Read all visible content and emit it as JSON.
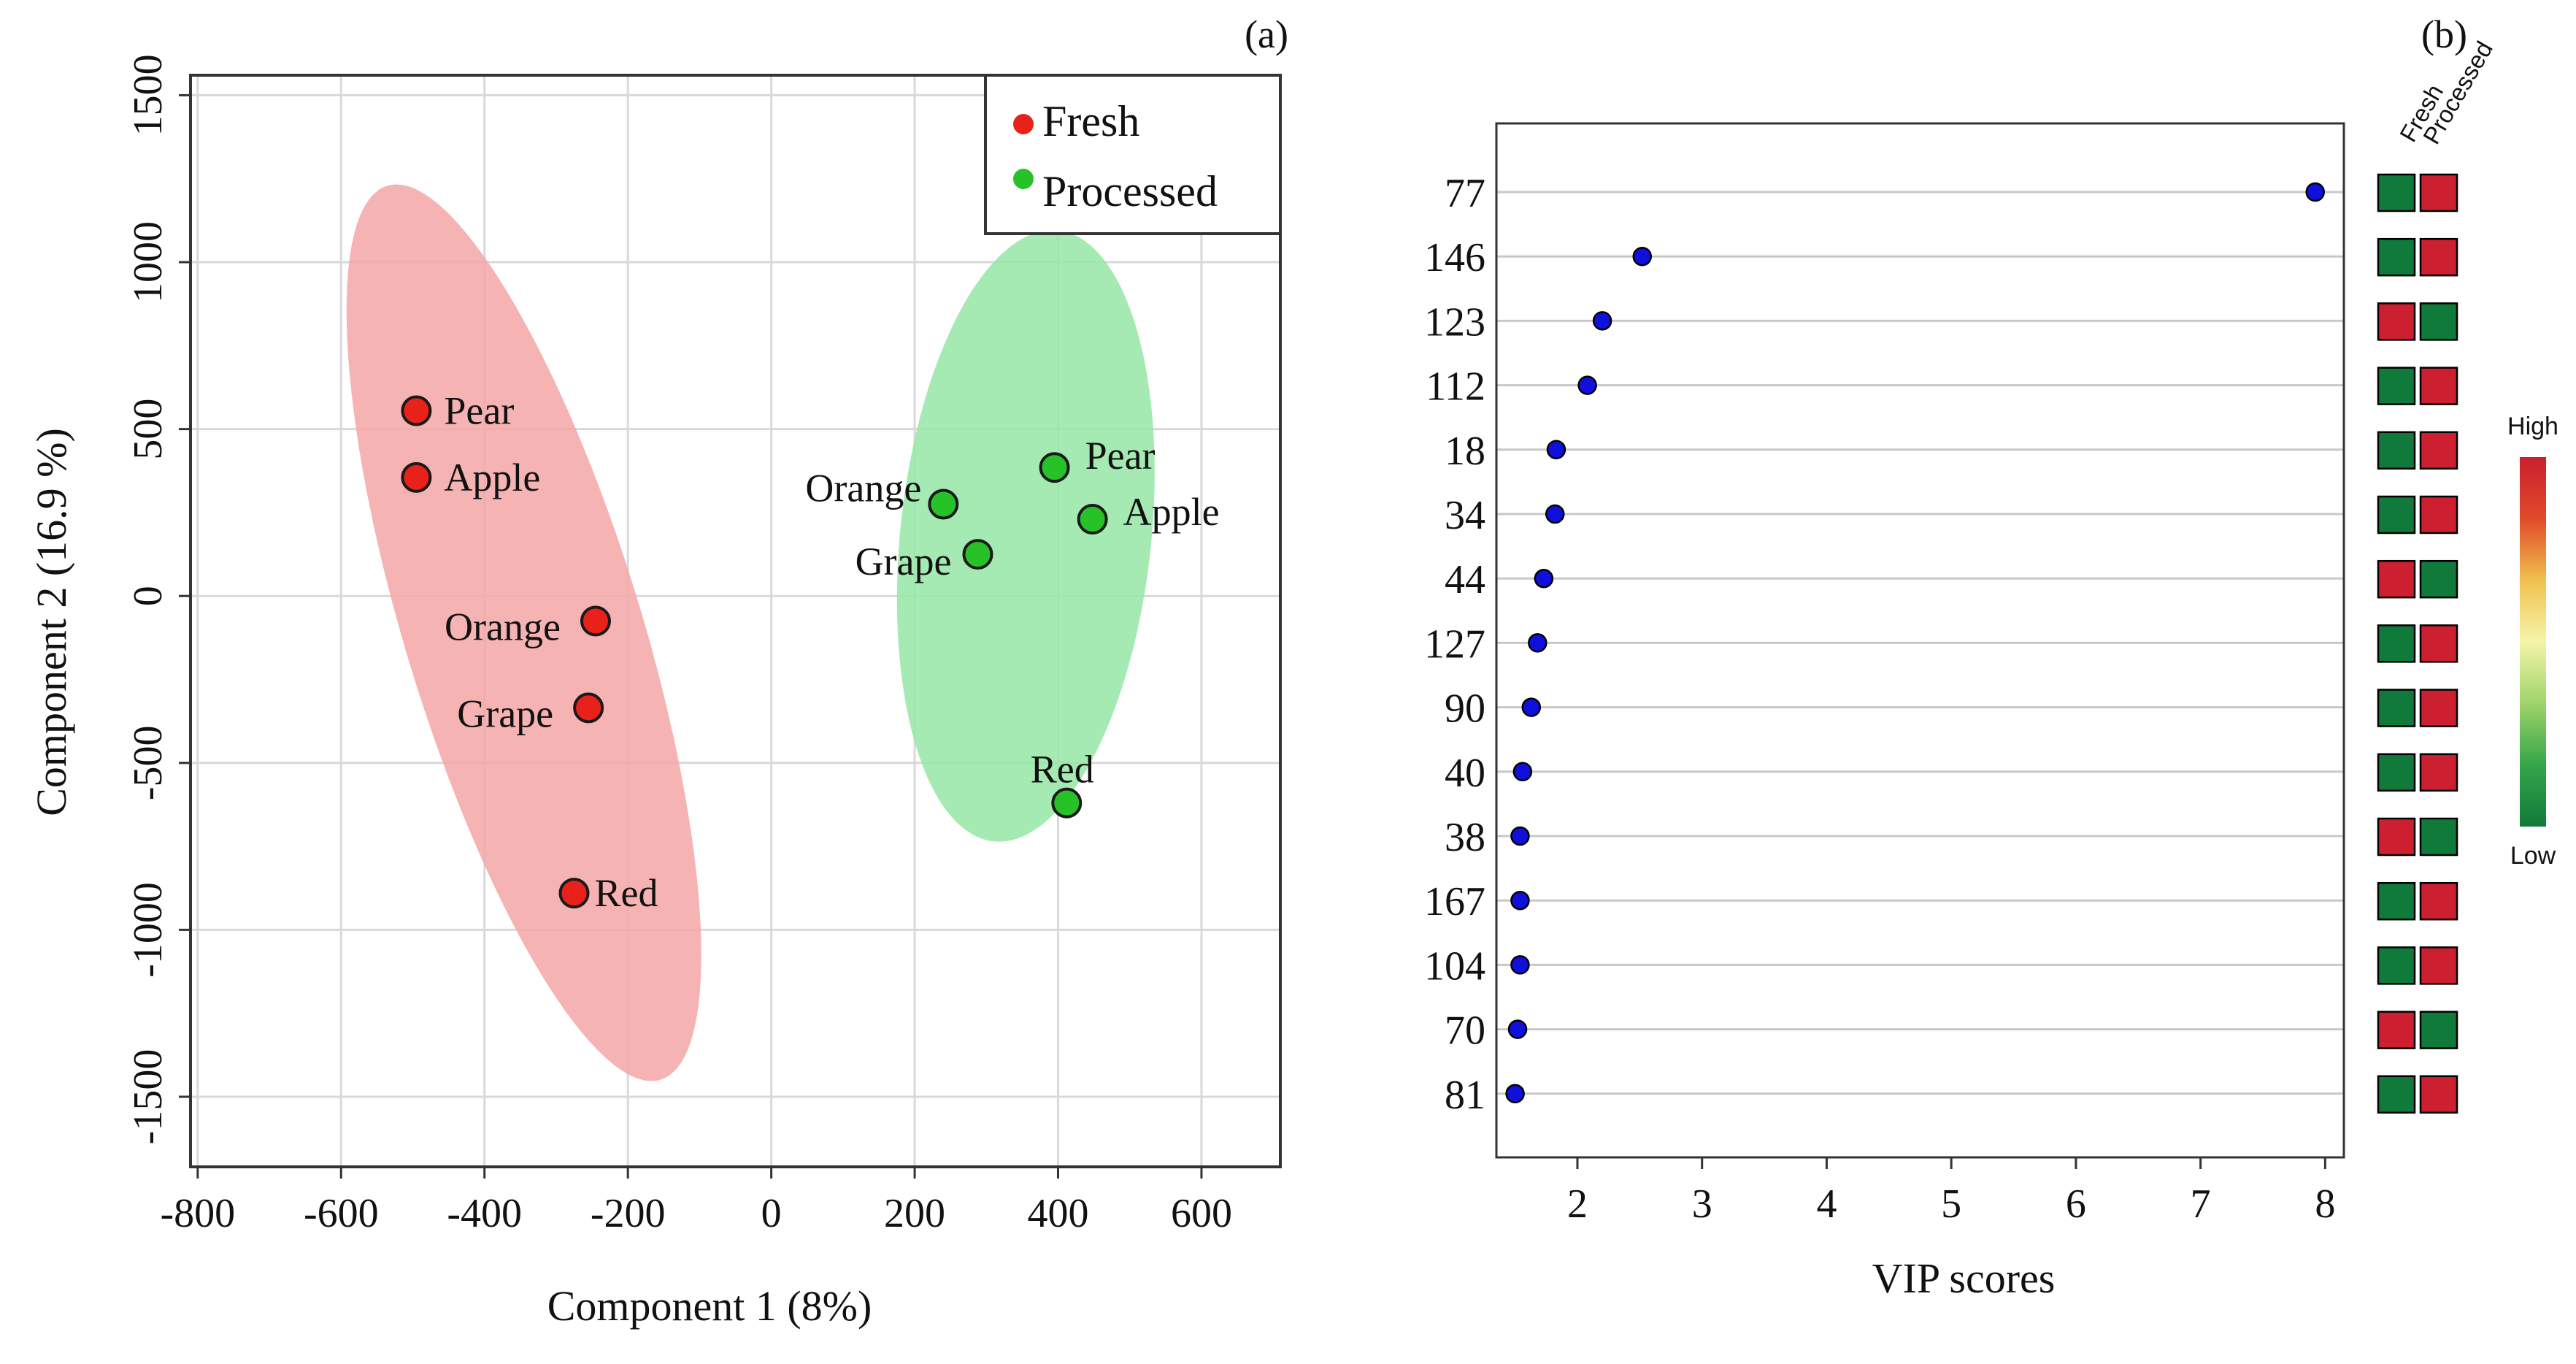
{
  "chart_data": [
    {
      "panel_label": "(a)",
      "type": "scatter",
      "xlabel": "Component 1 (8%)",
      "ylabel": "Component 2 (16.9 %)",
      "xlim": [
        -810,
        710
      ],
      "ylim": [
        -1710,
        1560
      ],
      "xticks": [
        -800,
        -600,
        -400,
        -200,
        0,
        200,
        400,
        600
      ],
      "yticks": [
        -1500,
        -1000,
        -500,
        0,
        500,
        1000,
        1500
      ],
      "grid": true,
      "legend_position": "top-right",
      "series": [
        {
          "name": "Fresh",
          "color": "#e8221b",
          "ellipse_color": "#f4a6a6",
          "points": [
            {
              "label": "Pear",
              "x": -495,
              "y": 555
            },
            {
              "label": "Apple",
              "x": -495,
              "y": 355
            },
            {
              "label": "Orange",
              "x": -245,
              "y": -75
            },
            {
              "label": "Grape",
              "x": -255,
              "y": -335
            },
            {
              "label": "Red",
              "x": -275,
              "y": -890
            }
          ],
          "ellipse": {
            "cx": -345,
            "cy": -110,
            "rx": 165,
            "ry": 1400,
            "angle_deg": 17
          }
        },
        {
          "name": "Processed",
          "color": "#27c227",
          "ellipse_color": "#94e6a4",
          "points": [
            {
              "label": "Pear",
              "x": 395,
              "y": 385
            },
            {
              "label": "Apple",
              "x": 448,
              "y": 230
            },
            {
              "label": "Orange",
              "x": 240,
              "y": 275
            },
            {
              "label": "Grape",
              "x": 288,
              "y": 125
            },
            {
              "label": "Red",
              "x": 412,
              "y": -620
            }
          ],
          "ellipse": {
            "cx": 355,
            "cy": 180,
            "rx": 175,
            "ry": 920,
            "angle_deg": -6
          }
        }
      ]
    },
    {
      "panel_label": "(b)",
      "type": "scatter",
      "xlabel": "VIP scores",
      "xlim": [
        1.35,
        8.15
      ],
      "xticks": [
        2,
        3,
        4,
        5,
        6,
        7,
        8
      ],
      "point_color": "#1010dd",
      "heatmap_columns": [
        "Fresh",
        "Processed"
      ],
      "heatmap_colors": {
        "high": "#cc1f30",
        "low": "#0f7a3a"
      },
      "color_scale": {
        "high_label": "High",
        "low_label": "Low",
        "colors": [
          "#cc1f30",
          "#e04a2a",
          "#f0c050",
          "#f5f5a8",
          "#9ed46a",
          "#35a54a",
          "#0f7a3a"
        ]
      },
      "features": [
        {
          "name": "77",
          "vip": 7.92,
          "fresh": "low",
          "processed": "high"
        },
        {
          "name": "146",
          "vip": 2.52,
          "fresh": "low",
          "processed": "high"
        },
        {
          "name": "123",
          "vip": 2.2,
          "fresh": "high",
          "processed": "low"
        },
        {
          "name": "112",
          "vip": 2.08,
          "fresh": "low",
          "processed": "high"
        },
        {
          "name": "18",
          "vip": 1.83,
          "fresh": "low",
          "processed": "high"
        },
        {
          "name": "34",
          "vip": 1.82,
          "fresh": "low",
          "processed": "high"
        },
        {
          "name": "44",
          "vip": 1.73,
          "fresh": "high",
          "processed": "low"
        },
        {
          "name": "127",
          "vip": 1.68,
          "fresh": "low",
          "processed": "high"
        },
        {
          "name": "90",
          "vip": 1.63,
          "fresh": "low",
          "processed": "high"
        },
        {
          "name": "40",
          "vip": 1.56,
          "fresh": "low",
          "processed": "high"
        },
        {
          "name": "38",
          "vip": 1.54,
          "fresh": "high",
          "processed": "low"
        },
        {
          "name": "167",
          "vip": 1.54,
          "fresh": "low",
          "processed": "high"
        },
        {
          "name": "104",
          "vip": 1.54,
          "fresh": "low",
          "processed": "high"
        },
        {
          "name": "70",
          "vip": 1.52,
          "fresh": "high",
          "processed": "low"
        },
        {
          "name": "81",
          "vip": 1.5,
          "fresh": "low",
          "processed": "high"
        }
      ]
    }
  ]
}
